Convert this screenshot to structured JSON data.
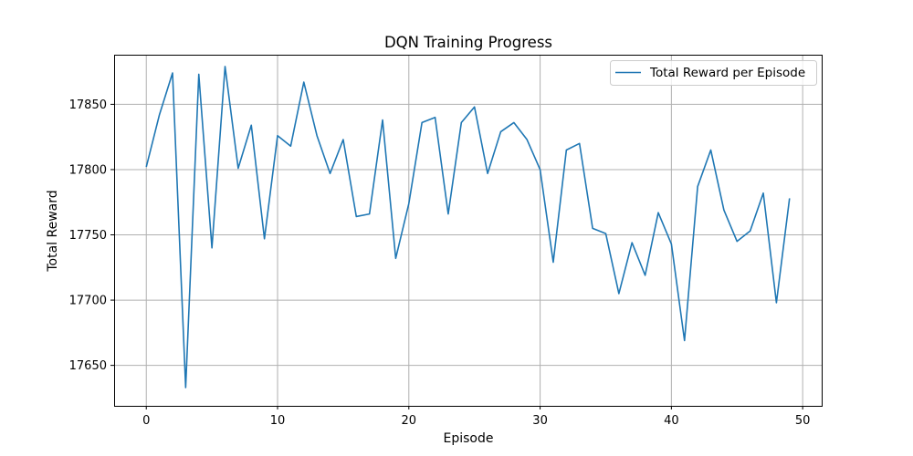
{
  "chart_data": {
    "type": "line",
    "title": "DQN Training Progress",
    "xlabel": "Episode",
    "ylabel": "Total Reward",
    "xlim": [
      -2.45,
      51.45
    ],
    "ylim": [
      17619,
      17888
    ],
    "xticks": [
      0,
      10,
      20,
      30,
      40,
      50
    ],
    "yticks": [
      17650,
      17700,
      17750,
      17800,
      17850
    ],
    "grid": true,
    "legend_position": "upper right",
    "series": [
      {
        "name": "Total Reward per Episode",
        "color": "#1f77b4",
        "x": [
          0,
          1,
          2,
          3,
          4,
          5,
          6,
          7,
          8,
          9,
          10,
          11,
          12,
          13,
          14,
          15,
          16,
          17,
          18,
          19,
          20,
          21,
          22,
          23,
          24,
          25,
          26,
          27,
          28,
          29,
          30,
          31,
          32,
          33,
          34,
          35,
          36,
          37,
          38,
          39,
          40,
          41,
          42,
          43,
          44,
          45,
          46,
          47,
          48,
          49
        ],
        "y": [
          17802,
          17842,
          17874,
          17633,
          17873,
          17740,
          17879,
          17801,
          17834,
          17747,
          17826,
          17818,
          17867,
          17826,
          17797,
          17823,
          17764,
          17766,
          17838,
          17732,
          17774,
          17836,
          17840,
          17766,
          17836,
          17848,
          17797,
          17829,
          17836,
          17823,
          17800,
          17729,
          17815,
          17820,
          17755,
          17751,
          17705,
          17744,
          17719,
          17767,
          17743,
          17669,
          17787,
          17815,
          17769,
          17745,
          17753,
          17782,
          17698,
          17778
        ]
      }
    ]
  }
}
